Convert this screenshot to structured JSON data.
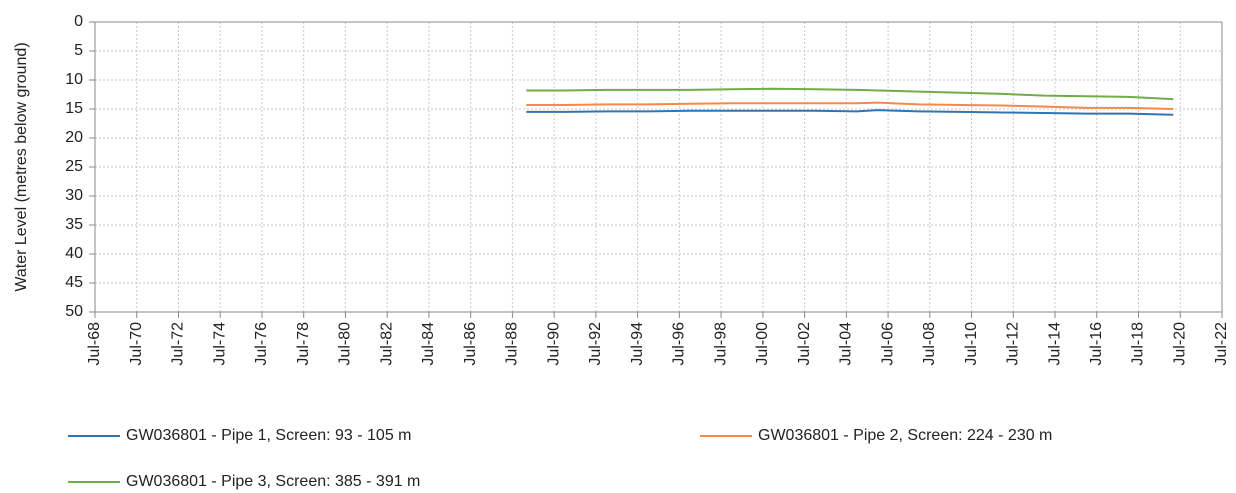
{
  "chart_data": {
    "type": "line",
    "y_label": "Water Level (metres below ground)",
    "y_inverted": true,
    "grid": true,
    "legend": "bottom",
    "x": [
      "1989-03",
      "1991-01",
      "1993-01",
      "1995-01",
      "1997-01",
      "1999-01",
      "2001-01",
      "2003-01",
      "2005-01",
      "2006-01",
      "2008-01",
      "2010-01",
      "2012-01",
      "2014-01",
      "2016-01",
      "2018-01",
      "2020-03"
    ],
    "series": [
      {
        "name": "GW036801 - Pipe 1, Screen: 93 - 105 m",
        "color": "#2e75b6",
        "values": [
          15.5,
          15.5,
          15.4,
          15.4,
          15.3,
          15.3,
          15.3,
          15.3,
          15.4,
          15.2,
          15.4,
          15.5,
          15.6,
          15.7,
          15.8,
          15.8,
          16.0
        ]
      },
      {
        "name": "GW036801 - Pipe 2, Screen: 224 - 230 m",
        "color": "#f4894b",
        "values": [
          14.3,
          14.3,
          14.2,
          14.2,
          14.1,
          14.0,
          14.0,
          14.0,
          14.0,
          13.9,
          14.2,
          14.3,
          14.4,
          14.6,
          14.8,
          14.8,
          15.0
        ]
      },
      {
        "name": "GW036801 - Pipe 3, Screen: 385 - 391 m",
        "color": "#70ad47",
        "values": [
          11.8,
          11.8,
          11.7,
          11.7,
          11.7,
          11.6,
          11.5,
          11.6,
          11.7,
          11.8,
          12.0,
          12.2,
          12.4,
          12.7,
          12.8,
          12.9,
          13.3
        ]
      }
    ],
    "ylim": [
      0,
      50
    ],
    "yticks": [
      0,
      5,
      10,
      15,
      20,
      25,
      30,
      35,
      40,
      45,
      50
    ],
    "xlim": [
      "1968-07",
      "2022-07"
    ],
    "xticks": [
      {
        "value": "1968-07",
        "label": "Jul-68"
      },
      {
        "value": "1970-07",
        "label": "Jul-70"
      },
      {
        "value": "1972-07",
        "label": "Jul-72"
      },
      {
        "value": "1974-07",
        "label": "Jul-74"
      },
      {
        "value": "1976-07",
        "label": "Jul-76"
      },
      {
        "value": "1978-07",
        "label": "Jul-78"
      },
      {
        "value": "1980-07",
        "label": "Jul-80"
      },
      {
        "value": "1982-07",
        "label": "Jul-82"
      },
      {
        "value": "1984-07",
        "label": "Jul-84"
      },
      {
        "value": "1986-07",
        "label": "Jul-86"
      },
      {
        "value": "1988-07",
        "label": "Jul-88"
      },
      {
        "value": "1990-07",
        "label": "Jul-90"
      },
      {
        "value": "1992-07",
        "label": "Jul-92"
      },
      {
        "value": "1994-07",
        "label": "Jul-94"
      },
      {
        "value": "1996-07",
        "label": "Jul-96"
      },
      {
        "value": "1998-07",
        "label": "Jul-98"
      },
      {
        "value": "2000-07",
        "label": "Jul-00"
      },
      {
        "value": "2002-07",
        "label": "Jul-02"
      },
      {
        "value": "2004-07",
        "label": "Jul-04"
      },
      {
        "value": "2006-07",
        "label": "Jul-06"
      },
      {
        "value": "2008-07",
        "label": "Jul-08"
      },
      {
        "value": "2010-07",
        "label": "Jul-10"
      },
      {
        "value": "2012-07",
        "label": "Jul-12"
      },
      {
        "value": "2014-07",
        "label": "Jul-14"
      },
      {
        "value": "2016-07",
        "label": "Jul-16"
      },
      {
        "value": "2018-07",
        "label": "Jul-18"
      },
      {
        "value": "2020-07",
        "label": "Jul-20"
      },
      {
        "value": "2022-07",
        "label": "Jul-22"
      }
    ]
  }
}
